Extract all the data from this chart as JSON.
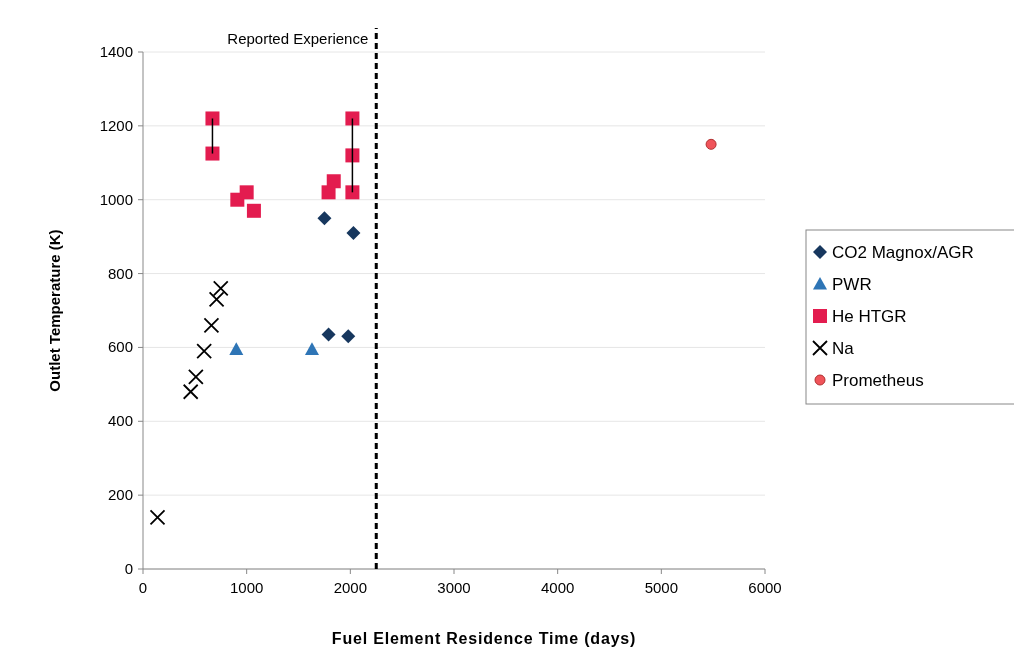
{
  "chart_data": {
    "type": "scatter",
    "xlabel": "Fuel Element Residence Time (days)",
    "ylabel": "Outlet Temperature (K)",
    "xlim": [
      0,
      6000
    ],
    "xticks": [
      0,
      1000,
      2000,
      3000,
      4000,
      5000,
      6000
    ],
    "ylim": [
      0,
      1400
    ],
    "yticks": [
      0,
      200,
      400,
      600,
      800,
      1000,
      1200,
      1400
    ],
    "grid": "y",
    "legend": "right",
    "ref_lines": [
      {
        "axis": "x",
        "value": 2250,
        "label": "Reported Experience",
        "color": "#000000",
        "line_style": "dashed"
      }
    ],
    "series": [
      {
        "name": "CO2 Magnox/AGR",
        "color": "#17375e",
        "marker": "diamond",
        "x": [
          1750,
          2030,
          1790,
          1980
        ],
        "values": [
          950,
          910,
          635,
          630
        ]
      },
      {
        "name": "PWR",
        "color": "#2e75b6",
        "marker": "triangle",
        "x": [
          900,
          1630
        ],
        "values": [
          595,
          595
        ]
      },
      {
        "name": "He HTGR",
        "color": "#e31c4f",
        "marker": "square",
        "x": [
          670,
          670,
          910,
          1000,
          1070,
          1790,
          1840,
          2020,
          2020,
          2020
        ],
        "values": [
          1220,
          1125,
          1000,
          1020,
          970,
          1020,
          1050,
          1220,
          1120,
          1020
        ]
      },
      {
        "name": "Na",
        "color": "#000000",
        "marker": "cross",
        "x": [
          750,
          710,
          660,
          590,
          510,
          460,
          140
        ],
        "values": [
          760,
          730,
          660,
          590,
          520,
          480,
          140
        ]
      },
      {
        "name": "Prometheus",
        "color": "#f0545a",
        "marker": "circle",
        "x": [
          5480
        ],
        "values": [
          1150
        ]
      },
      {
        "type": "line",
        "color": "#000000",
        "marker": "none",
        "x": [
          670,
          670
        ],
        "values": [
          1125,
          1220
        ]
      },
      {
        "type": "line",
        "color": "#000000",
        "marker": "none",
        "x": [
          2020,
          2020
        ],
        "values": [
          1020,
          1220
        ]
      }
    ]
  }
}
